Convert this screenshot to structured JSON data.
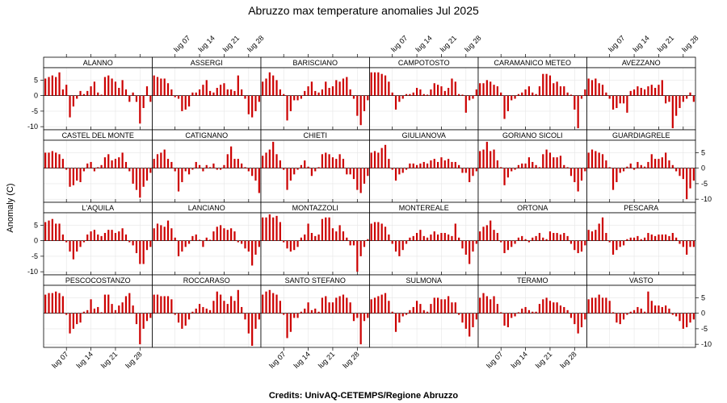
{
  "chart_data": {
    "type": "bar",
    "title": "Abruzzo max temperature anomalies Jul 2025",
    "ylabel": "Anomaly (C)",
    "credits": "Credits: UnivAQ-CETEMPS/Regione Abruzzo",
    "ylim": [
      -11,
      9
    ],
    "yticks": [
      -10,
      -5,
      0,
      5
    ],
    "yticks_right": [
      -10,
      -5,
      0,
      5
    ],
    "x": [
      1,
      2,
      3,
      4,
      5,
      6,
      7,
      8,
      9,
      10,
      11,
      12,
      13,
      14,
      15,
      16,
      17,
      18,
      19,
      20,
      21,
      22,
      23,
      24,
      25,
      26,
      27,
      28,
      29,
      30,
      31
    ],
    "xticks": [
      {
        "day": 7,
        "label": "lug 07"
      },
      {
        "day": 14,
        "label": "lug 14"
      },
      {
        "day": 21,
        "label": "lug 21"
      },
      {
        "day": 28,
        "label": "lug 28"
      }
    ],
    "bar_color": "#cc0000",
    "grid": true,
    "layout": {
      "columns": 6,
      "rows": 4
    },
    "panels": [
      {
        "name": "ALANNO",
        "values": [
          5.5,
          6,
          6.5,
          6,
          7.5,
          2,
          3.5,
          -7,
          -3.5,
          -1,
          1.5,
          0.5,
          1.5,
          3,
          4.5,
          1,
          0,
          6,
          6.5,
          5.5,
          4.5,
          2.5,
          5,
          2,
          -2,
          1,
          -2,
          -9,
          -4,
          3,
          -2
        ]
      },
      {
        "name": "ASSERGI",
        "values": [
          6.5,
          6,
          5.5,
          5.5,
          4,
          2,
          -0.5,
          -1,
          -5,
          -4.5,
          -3.5,
          1,
          1,
          2,
          3.5,
          5,
          1.5,
          1,
          2.5,
          3.5,
          4,
          2,
          2,
          1.5,
          6.5,
          2,
          -1,
          -6,
          -7,
          -5,
          -2
        ]
      },
      {
        "name": "BARISCIANO",
        "values": [
          4.5,
          5.5,
          7.5,
          6.5,
          5,
          2,
          0.5,
          -8,
          -5,
          -1.5,
          -1.5,
          -1,
          1.5,
          3,
          4.5,
          1.5,
          1,
          2,
          4.5,
          2.5,
          3,
          5,
          4.5,
          5.5,
          6,
          2,
          -1,
          -6.5,
          -9.5,
          -5,
          -1.5
        ]
      },
      {
        "name": "CAMPOTOSTO",
        "values": [
          7.5,
          7.5,
          7.5,
          7,
          6.5,
          4.5,
          1,
          -4.5,
          -2,
          -1,
          0.5,
          0.5,
          1,
          2.5,
          2,
          0.5,
          0,
          2,
          4,
          3.5,
          3,
          1.5,
          2.5,
          5.5,
          4.5,
          0.5,
          0,
          -5.5,
          -1.5,
          -1,
          2
        ]
      },
      {
        "name": "CARAMANICO METEO",
        "values": [
          4,
          4,
          5,
          4.5,
          3.5,
          3,
          1,
          -7.5,
          -5,
          -1.5,
          -1,
          0.5,
          1,
          2,
          3,
          1,
          0.5,
          3,
          7,
          7,
          6.5,
          4,
          4.5,
          3,
          3,
          1,
          0,
          -4.5,
          -10.5,
          -1,
          2
        ]
      },
      {
        "name": "AVEZZANO",
        "values": [
          5.5,
          5,
          5.5,
          4,
          3.5,
          1,
          -1,
          -4.5,
          -4,
          -2.5,
          -2.5,
          -5.5,
          1.5,
          2,
          3,
          2.5,
          2,
          3,
          3.5,
          2.5,
          3.5,
          5,
          -2.5,
          -2,
          -10.5,
          -6.5,
          -4,
          -2,
          -1,
          1,
          -2
        ]
      },
      {
        "name": "CASTEL DEL MONTE",
        "values": [
          5,
          5,
          5.5,
          5,
          4.5,
          3,
          -0.5,
          -6,
          -5.5,
          -4,
          -4.5,
          -1,
          1.5,
          2,
          -1,
          0,
          1,
          3.5,
          4.5,
          2.5,
          3,
          3.5,
          5,
          2,
          -1,
          -5,
          -7,
          -9.5,
          -6,
          -4,
          -1.5
        ]
      },
      {
        "name": "CATIGNANO",
        "values": [
          3,
          4.5,
          5,
          6,
          3,
          2,
          -1,
          -7.5,
          -4.5,
          -1,
          -2,
          -0.5,
          2,
          1,
          -1,
          1,
          0,
          1.5,
          -0.5,
          -0.5,
          1,
          4.5,
          7,
          3,
          3,
          1.5,
          0,
          -1,
          -2.5,
          -4,
          -8
        ]
      },
      {
        "name": "CHIETI",
        "values": [
          4,
          5,
          6,
          8.5,
          4.5,
          2.5,
          -0.5,
          -7,
          -4,
          -2,
          -0.5,
          1,
          2.5,
          0.5,
          -2.5,
          -1,
          0,
          4.5,
          5,
          4.5,
          3.5,
          3,
          4.5,
          3,
          -2,
          -2,
          -3.5,
          -7,
          -8,
          -5,
          -2.5
        ]
      },
      {
        "name": "GIULIANOVA",
        "values": [
          5,
          5.5,
          5,
          6.5,
          7.5,
          3,
          -0.5,
          -4,
          -2,
          -1.5,
          -0.5,
          1.5,
          1.5,
          1,
          1.5,
          2,
          1.5,
          2.5,
          3,
          2,
          3.5,
          2.5,
          3,
          2,
          2,
          1,
          -1.5,
          -1.5,
          -4.5,
          -2.5,
          -1
        ]
      },
      {
        "name": "GORIANO SICOLI",
        "values": [
          5.5,
          6,
          8.5,
          5.5,
          6,
          2.5,
          0,
          -5.5,
          -3,
          -1,
          -0.5,
          1,
          1.5,
          1.5,
          3.5,
          2,
          1,
          0,
          4.5,
          6,
          5,
          3.5,
          3.5,
          4,
          1,
          0,
          -2.5,
          -4.5,
          -7.5,
          -4,
          -1
        ]
      },
      {
        "name": "GUARDIAGRELE",
        "values": [
          5,
          6,
          5.5,
          5,
          4.5,
          2.5,
          0,
          -7,
          -4.5,
          -1.5,
          -1,
          0.5,
          1.5,
          -0.5,
          2,
          1,
          0.5,
          2,
          4.5,
          3,
          3,
          3.5,
          5,
          2.5,
          1,
          -1,
          -2.5,
          -3.5,
          -10,
          -6.5,
          -4
        ]
      },
      {
        "name": "L'AQUILA",
        "values": [
          6,
          6.5,
          7,
          5.5,
          5.5,
          2,
          -0.5,
          -3.5,
          -6,
          -3.5,
          -2,
          -0.5,
          2,
          3,
          3.5,
          2,
          1.5,
          2.5,
          3.5,
          3.5,
          2.5,
          3,
          4,
          2,
          -0.5,
          -1.5,
          -4,
          -7.5,
          -7.5,
          -3,
          -2
        ]
      },
      {
        "name": "LANCIANO",
        "values": [
          4,
          5.5,
          5,
          4.5,
          6.5,
          4,
          1,
          -5,
          -3.5,
          -2,
          -1,
          1.5,
          2,
          0,
          -2,
          1,
          0,
          3,
          4.5,
          5,
          4,
          3.5,
          4,
          3,
          -0.5,
          -1,
          -2.5,
          -3.5,
          -8,
          -4.5,
          -2
        ]
      },
      {
        "name": "MONTAZZOLI",
        "values": [
          7.5,
          7.5,
          8.5,
          7.5,
          8,
          6,
          -0.5,
          -2.5,
          -3.5,
          -3,
          -2,
          1,
          2,
          5.5,
          2.5,
          1.5,
          2,
          7,
          7.5,
          7.5,
          4,
          3,
          5,
          3,
          1,
          -1.5,
          -1.5,
          -10,
          -5,
          -2,
          0.5
        ]
      },
      {
        "name": "MONTEREALE",
        "values": [
          5.5,
          6,
          6,
          5.5,
          4.5,
          2,
          -1,
          -3.5,
          -5,
          -3,
          -1,
          1,
          1.5,
          2.5,
          3.5,
          1.5,
          1,
          2,
          3,
          2,
          2.5,
          2.5,
          2,
          1.5,
          5.5,
          1,
          -2.5,
          -4.5,
          -7.5,
          -3.5,
          -1
        ]
      },
      {
        "name": "ORTONA",
        "values": [
          3,
          4.5,
          5,
          6.5,
          3.5,
          2.5,
          -0.5,
          -4,
          -3,
          -2,
          -1,
          1,
          1.5,
          0.5,
          -0.5,
          1,
          1.5,
          2.5,
          1,
          0.5,
          3,
          2.5,
          2.5,
          2,
          2.5,
          1.5,
          -1,
          -3,
          -4,
          -3.5,
          -1.5
        ]
      },
      {
        "name": "PESCARA",
        "values": [
          3.5,
          3,
          3.5,
          5.5,
          7.5,
          2.5,
          -0.5,
          -4.5,
          -3,
          -2,
          -1.5,
          0.5,
          1,
          1,
          1.5,
          0.5,
          1,
          2.5,
          2,
          1.5,
          2,
          2,
          2,
          1.5,
          2.5,
          1,
          -1,
          -2,
          -4.5,
          -2,
          -2
        ]
      },
      {
        "name": "PESCOCOSTANZO",
        "values": [
          6,
          6.5,
          6.5,
          7,
          6.5,
          5.5,
          -0.5,
          -6.5,
          -5,
          -3.5,
          -3,
          0.5,
          1,
          4.5,
          1.5,
          2,
          0,
          6,
          6,
          3,
          1,
          2.5,
          3.5,
          5.5,
          6.5,
          2.5,
          -3.5,
          -10,
          -5,
          -2.5,
          -1.5
        ]
      },
      {
        "name": "ROCCARASO",
        "values": [
          6,
          6,
          5.5,
          5.5,
          5.5,
          4.5,
          -0.5,
          -3,
          -5,
          -4,
          -2,
          0.5,
          1.5,
          3,
          2,
          1.5,
          1,
          4,
          7,
          6,
          4,
          3,
          5.5,
          4,
          7.5,
          2,
          -2,
          -6.5,
          -10.5,
          -5,
          -2
        ]
      },
      {
        "name": "SANTO STEFANO",
        "values": [
          6,
          7,
          7.5,
          6.5,
          6,
          4,
          -0.5,
          -8,
          -6,
          -1.5,
          -1.5,
          0.5,
          1.5,
          3.5,
          1,
          1.5,
          0.5,
          5,
          5.5,
          3.5,
          3.5,
          5,
          5.5,
          6,
          5,
          3.5,
          -2.5,
          -1.5,
          -10,
          -2.5,
          -1.5
        ]
      },
      {
        "name": "SULMONA",
        "values": [
          4.5,
          5,
          5.5,
          6,
          6.5,
          4,
          0.5,
          -6,
          -3,
          -1,
          -0.5,
          1,
          2,
          4,
          3,
          1,
          0.5,
          3,
          5,
          5,
          4.5,
          4.5,
          5.5,
          3.5,
          3.5,
          -0.5,
          -3,
          -5,
          -7.5,
          -4.5,
          -2
        ]
      },
      {
        "name": "TERAMO",
        "values": [
          5,
          6.5,
          5.5,
          4.5,
          5.5,
          3,
          0,
          -4,
          -4.5,
          -1.5,
          -1,
          0,
          1.5,
          2,
          1,
          0.5,
          0.5,
          3,
          4.5,
          5,
          4,
          3.5,
          3.5,
          2.5,
          2,
          1,
          -1.5,
          -3.5,
          -6.5,
          -4.5,
          -2
        ]
      },
      {
        "name": "VASTO",
        "values": [
          4.5,
          5,
          5,
          6,
          5,
          5,
          4,
          0,
          -3,
          -3.5,
          -2,
          -0.5,
          0.5,
          1,
          2,
          1.5,
          0.5,
          7,
          4,
          2.5,
          2.5,
          2,
          2.5,
          1.5,
          -0.5,
          -1,
          -2.5,
          -5,
          -4.5,
          -3,
          -2
        ]
      }
    ]
  }
}
